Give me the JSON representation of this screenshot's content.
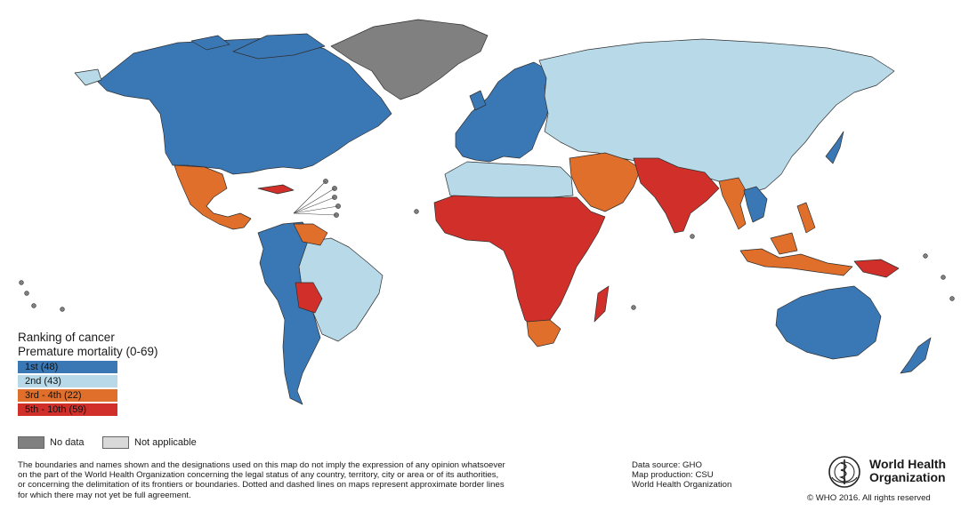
{
  "legend": {
    "title_line1": "Ranking of cancer",
    "title_line2": "Premature mortality (0-69)",
    "items": [
      {
        "label": "1st (48)",
        "color": "#3a78b5"
      },
      {
        "label": "2nd (43)",
        "color": "#b7d9e8"
      },
      {
        "label": "3rd - 4th (22)",
        "color": "#e06f2b"
      },
      {
        "label": "5th - 10th (59)",
        "color": "#d1302a"
      }
    ],
    "no_data": {
      "label": "No data",
      "color": "#808080"
    },
    "not_applicable": {
      "label": "Not applicable",
      "color": "#d9d9d9"
    }
  },
  "disclaimer": {
    "line1": "The boundaries and names shown and the designations used on this map do not imply the expression of any opinion whatsoever",
    "line2": "on the part of the World Health Organization concerning the legal status of any country, territory, city or area or of its authorities,",
    "line3": "or concerning the delimitation of its frontiers or boundaries. Dotted and dashed lines on maps represent approximate border lines",
    "line4": "for which there may not yet be full agreement."
  },
  "source": {
    "data_source": "Data source: GHO",
    "map_production": "Map production: CSU",
    "org": "World Health Organization"
  },
  "logo": {
    "name_line1": "World Health",
    "name_line2": "Organization",
    "copyright": "© WHO 2016. All rights reserved"
  }
}
